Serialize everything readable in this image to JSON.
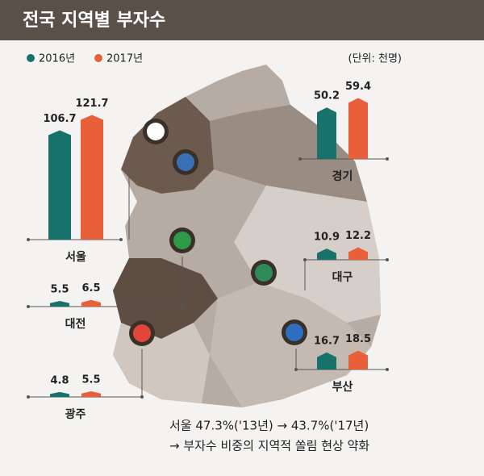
{
  "chart_data": {
    "type": "bar",
    "title": "전국 지역별 부자수",
    "unit": "(단위: 천명)",
    "categories": [
      "서울",
      "경기",
      "대전",
      "대구",
      "광주",
      "부산"
    ],
    "series": [
      {
        "name": "2016년",
        "color": "#17726c",
        "values": [
          106.7,
          50.2,
          5.5,
          10.9,
          4.8,
          16.7
        ]
      },
      {
        "name": "2017년",
        "color": "#e8603a",
        "values": [
          121.7,
          59.4,
          6.5,
          12.2,
          5.5,
          18.5
        ]
      }
    ],
    "annotations": [
      "서울 47.3%('13년) → 43.7%('17년)",
      "→ 부자수 비중의 지역적 쏠림 현상 약화"
    ]
  }
}
